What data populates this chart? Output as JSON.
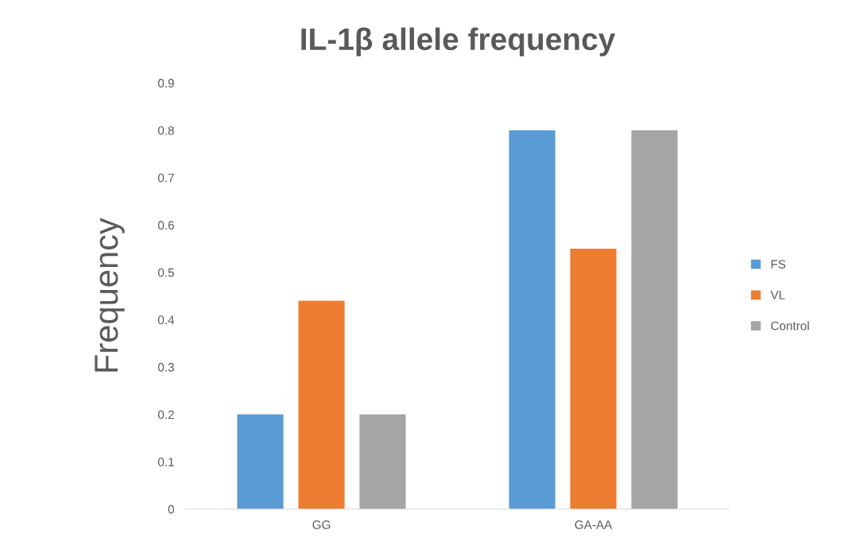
{
  "chart_data": {
    "type": "bar",
    "title": "IL-1β allele frequency",
    "ylabel": "Frequency",
    "categories": [
      "GG",
      "GA-AA"
    ],
    "series": [
      {
        "name": "FS",
        "color": "#5b9bd5",
        "values": [
          0.2,
          0.8
        ]
      },
      {
        "name": "VL",
        "color": "#ed7d31",
        "values": [
          0.44,
          0.55
        ]
      },
      {
        "name": "Control",
        "color": "#a5a5a5",
        "values": [
          0.2,
          0.8
        ]
      }
    ],
    "ylim": [
      0,
      0.9
    ],
    "yticks": [
      0,
      0.1,
      0.2,
      0.3,
      0.4,
      0.5,
      0.6,
      0.7,
      0.8,
      0.9
    ],
    "grid": false,
    "legend": "right"
  }
}
